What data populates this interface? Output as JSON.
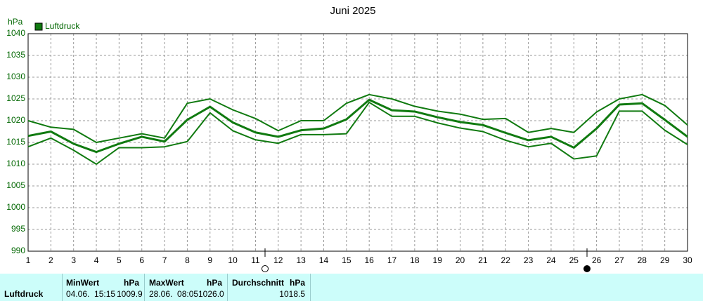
{
  "chart_data": {
    "type": "line",
    "title": "Juni 2025",
    "ylabel": "hPa",
    "x": [
      1,
      2,
      3,
      4,
      5,
      6,
      7,
      8,
      9,
      10,
      11,
      12,
      13,
      14,
      15,
      16,
      17,
      18,
      19,
      20,
      21,
      22,
      23,
      24,
      25,
      26,
      27,
      28,
      29,
      30
    ],
    "xlim": [
      1,
      30
    ],
    "xticks": [
      1,
      2,
      3,
      4,
      5,
      6,
      7,
      8,
      9,
      10,
      11,
      12,
      13,
      14,
      15,
      16,
      17,
      18,
      19,
      20,
      21,
      22,
      23,
      24,
      25,
      26,
      27,
      28,
      29,
      30
    ],
    "ylim": [
      990,
      1040
    ],
    "yticks": [
      990,
      995,
      1000,
      1005,
      1010,
      1015,
      1020,
      1025,
      1030,
      1035,
      1040
    ],
    "grid": true,
    "legend": "top-left",
    "series": [
      {
        "name": "Luftdruck",
        "color": "#107a10",
        "values": [
          1016.5,
          1017.5,
          1014.7,
          1012.8,
          1014.7,
          1016.3,
          1015.2,
          1020.2,
          1023.2,
          1019.6,
          1017.3,
          1016.3,
          1017.8,
          1018.2,
          1020.3,
          1024.8,
          1022.4,
          1022.1,
          1020.8,
          1019.7,
          1019.0,
          1017.2,
          1015.5,
          1016.3,
          1013.8,
          1018.2,
          1023.7,
          1024.0,
          1020.2,
          1016.3
        ]
      },
      {
        "color": "#107a10",
        "values": [
          1020.0,
          1018.5,
          1018.0,
          1015.0,
          1016.0,
          1017.0,
          1016.0,
          1024.0,
          1025.0,
          1022.5,
          1020.5,
          1017.7,
          1020.0,
          1020.0,
          1024.0,
          1026.0,
          1025.0,
          1023.3,
          1022.2,
          1021.5,
          1020.3,
          1020.5,
          1017.3,
          1018.2,
          1017.3,
          1022.0,
          1025.0,
          1026.0,
          1023.5,
          1019.0
        ]
      },
      {
        "color": "#107a10",
        "values": [
          1014.0,
          1016.0,
          1013.2,
          1010.0,
          1013.8,
          1013.8,
          1014.0,
          1015.2,
          1021.8,
          1017.7,
          1015.6,
          1014.8,
          1016.8,
          1016.8,
          1017.0,
          1024.2,
          1021.0,
          1021.0,
          1019.5,
          1018.3,
          1017.5,
          1015.5,
          1014.0,
          1014.8,
          1011.2,
          1011.9,
          1022.2,
          1022.2,
          1017.8,
          1014.5
        ]
      }
    ]
  },
  "summary": {
    "row_label": "Luftdruck",
    "min": {
      "title": "MinWert",
      "unit": "hPa",
      "time": "04.06.  15:15",
      "value": "1009.9"
    },
    "max": {
      "title": "MaxWert",
      "unit": "hPa",
      "time": "28.06.  08:05",
      "value": "1026.0"
    },
    "avg": {
      "title": "Durchschnitt",
      "unit": "hPa",
      "value": "1018.5"
    }
  }
}
